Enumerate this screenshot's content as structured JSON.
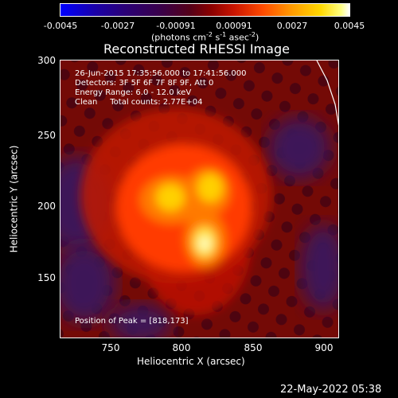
{
  "colorbar": {
    "ticks": [
      "-0.0045",
      "-0.0027",
      "-0.00091",
      "0.00091",
      "0.0027",
      "0.0045"
    ],
    "unit_prefix": "(photons cm",
    "unit_exp1": "-2",
    "unit_mid1": " s",
    "unit_exp2": "-1",
    "unit_mid2": " asec",
    "unit_exp3": "-2",
    "unit_suffix": ")"
  },
  "title": "Reconstructed RHESSI Image",
  "info": {
    "time_range": "26-Jun-2015 17:35:56.000 to 17:41:56.000",
    "detectors": "Detectors: 3F 5F 6F 7F 8F 9F, Att 0",
    "energy": "Energy Range: 6.0 - 12.0 keV",
    "clean": "Clean     Total counts: 2.77E+04",
    "peak": "Position of Peak = [818,173]"
  },
  "axes": {
    "xlabel": "Heliocentric X (arcsec)",
    "ylabel": "Heliocentric Y (arcsec)",
    "xticks": [
      "750",
      "800",
      "850",
      "900"
    ],
    "yticks": [
      "300",
      "250",
      "200",
      "150"
    ]
  },
  "datestamp": "22-May-2022 05:38"
}
